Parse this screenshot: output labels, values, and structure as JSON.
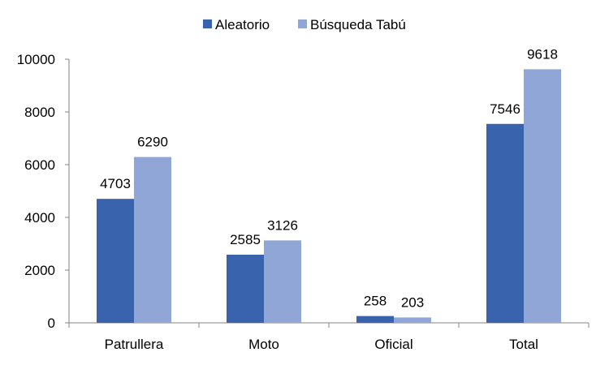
{
  "chart_data": {
    "type": "bar",
    "categories": [
      "Patrullera",
      "Moto",
      "Oficial",
      "Total"
    ],
    "series": [
      {
        "name": "Aleatorio",
        "values": [
          4703,
          2585,
          258,
          7546
        ],
        "color": "#3A63AE"
      },
      {
        "name": "Búsqueda Tabú",
        "values": [
          6290,
          3126,
          203,
          9618
        ],
        "color": "#8FA6D6"
      }
    ],
    "yticks": [
      "0",
      "2000",
      "4000",
      "6000",
      "8000",
      "10000"
    ],
    "ylim": [
      0,
      10000
    ],
    "grid": false,
    "legend": "top-center",
    "data_labels": true
  }
}
